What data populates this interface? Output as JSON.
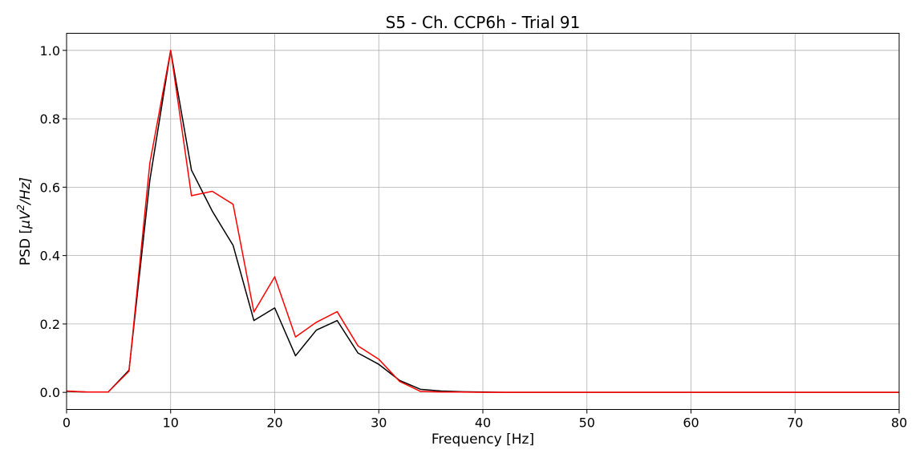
{
  "chart_data": {
    "type": "line",
    "title": "S5 - Ch. CCP6h - Trial 91",
    "xlabel": "Frequency [Hz]",
    "ylabel_prefix": "PSD [",
    "ylabel_mu": "μV",
    "ylabel_sup": "2",
    "ylabel_suffix": "/Hz]",
    "xlim": [
      0,
      80
    ],
    "ylim": [
      -0.05,
      1.05
    ],
    "xticks": [
      0,
      10,
      20,
      30,
      40,
      50,
      60,
      70,
      80
    ],
    "xtick_labels": [
      "0",
      "10",
      "20",
      "30",
      "40",
      "50",
      "60",
      "70",
      "80"
    ],
    "yticks": [
      0.0,
      0.2,
      0.4,
      0.6,
      0.8,
      1.0
    ],
    "ytick_labels": [
      "0.0",
      "0.2",
      "0.4",
      "0.6",
      "0.8",
      "1.0"
    ],
    "grid": true,
    "x": [
      0,
      2,
      4,
      6,
      8,
      10,
      12,
      14,
      16,
      18,
      20,
      22,
      24,
      26,
      28,
      30,
      32,
      34,
      36,
      38,
      40,
      42,
      44,
      46,
      48,
      50,
      52,
      54,
      56,
      58,
      60,
      62,
      64,
      66,
      68,
      70,
      72,
      74,
      76,
      78,
      80
    ],
    "series": [
      {
        "color": "#000000",
        "values": [
          0.003,
          0.001,
          0.001,
          0.065,
          0.62,
          1.0,
          0.65,
          0.53,
          0.43,
          0.21,
          0.247,
          0.107,
          0.182,
          0.21,
          0.115,
          0.082,
          0.035,
          0.009,
          0.004,
          0.002,
          0.001,
          0.0,
          0.0,
          0.0,
          0.0,
          0.0,
          0.0,
          0.0,
          0.0,
          0.0,
          0.0,
          0.0,
          0.0,
          0.0,
          0.0,
          0.0,
          0.0,
          0.0,
          0.0,
          0.0,
          0.0
        ]
      },
      {
        "color": "#ff0000",
        "values": [
          0.004,
          0.001,
          0.001,
          0.062,
          0.67,
          1.0,
          0.575,
          0.588,
          0.55,
          0.235,
          0.338,
          0.162,
          0.205,
          0.236,
          0.136,
          0.097,
          0.032,
          0.003,
          0.001,
          0.001,
          0.0,
          0.0,
          0.0,
          0.0,
          0.0,
          0.0,
          0.0,
          0.0,
          0.0,
          0.0,
          0.0,
          0.0,
          0.0,
          0.0,
          0.0,
          0.0,
          0.0,
          0.0,
          0.0,
          0.0,
          0.0
        ]
      }
    ]
  }
}
